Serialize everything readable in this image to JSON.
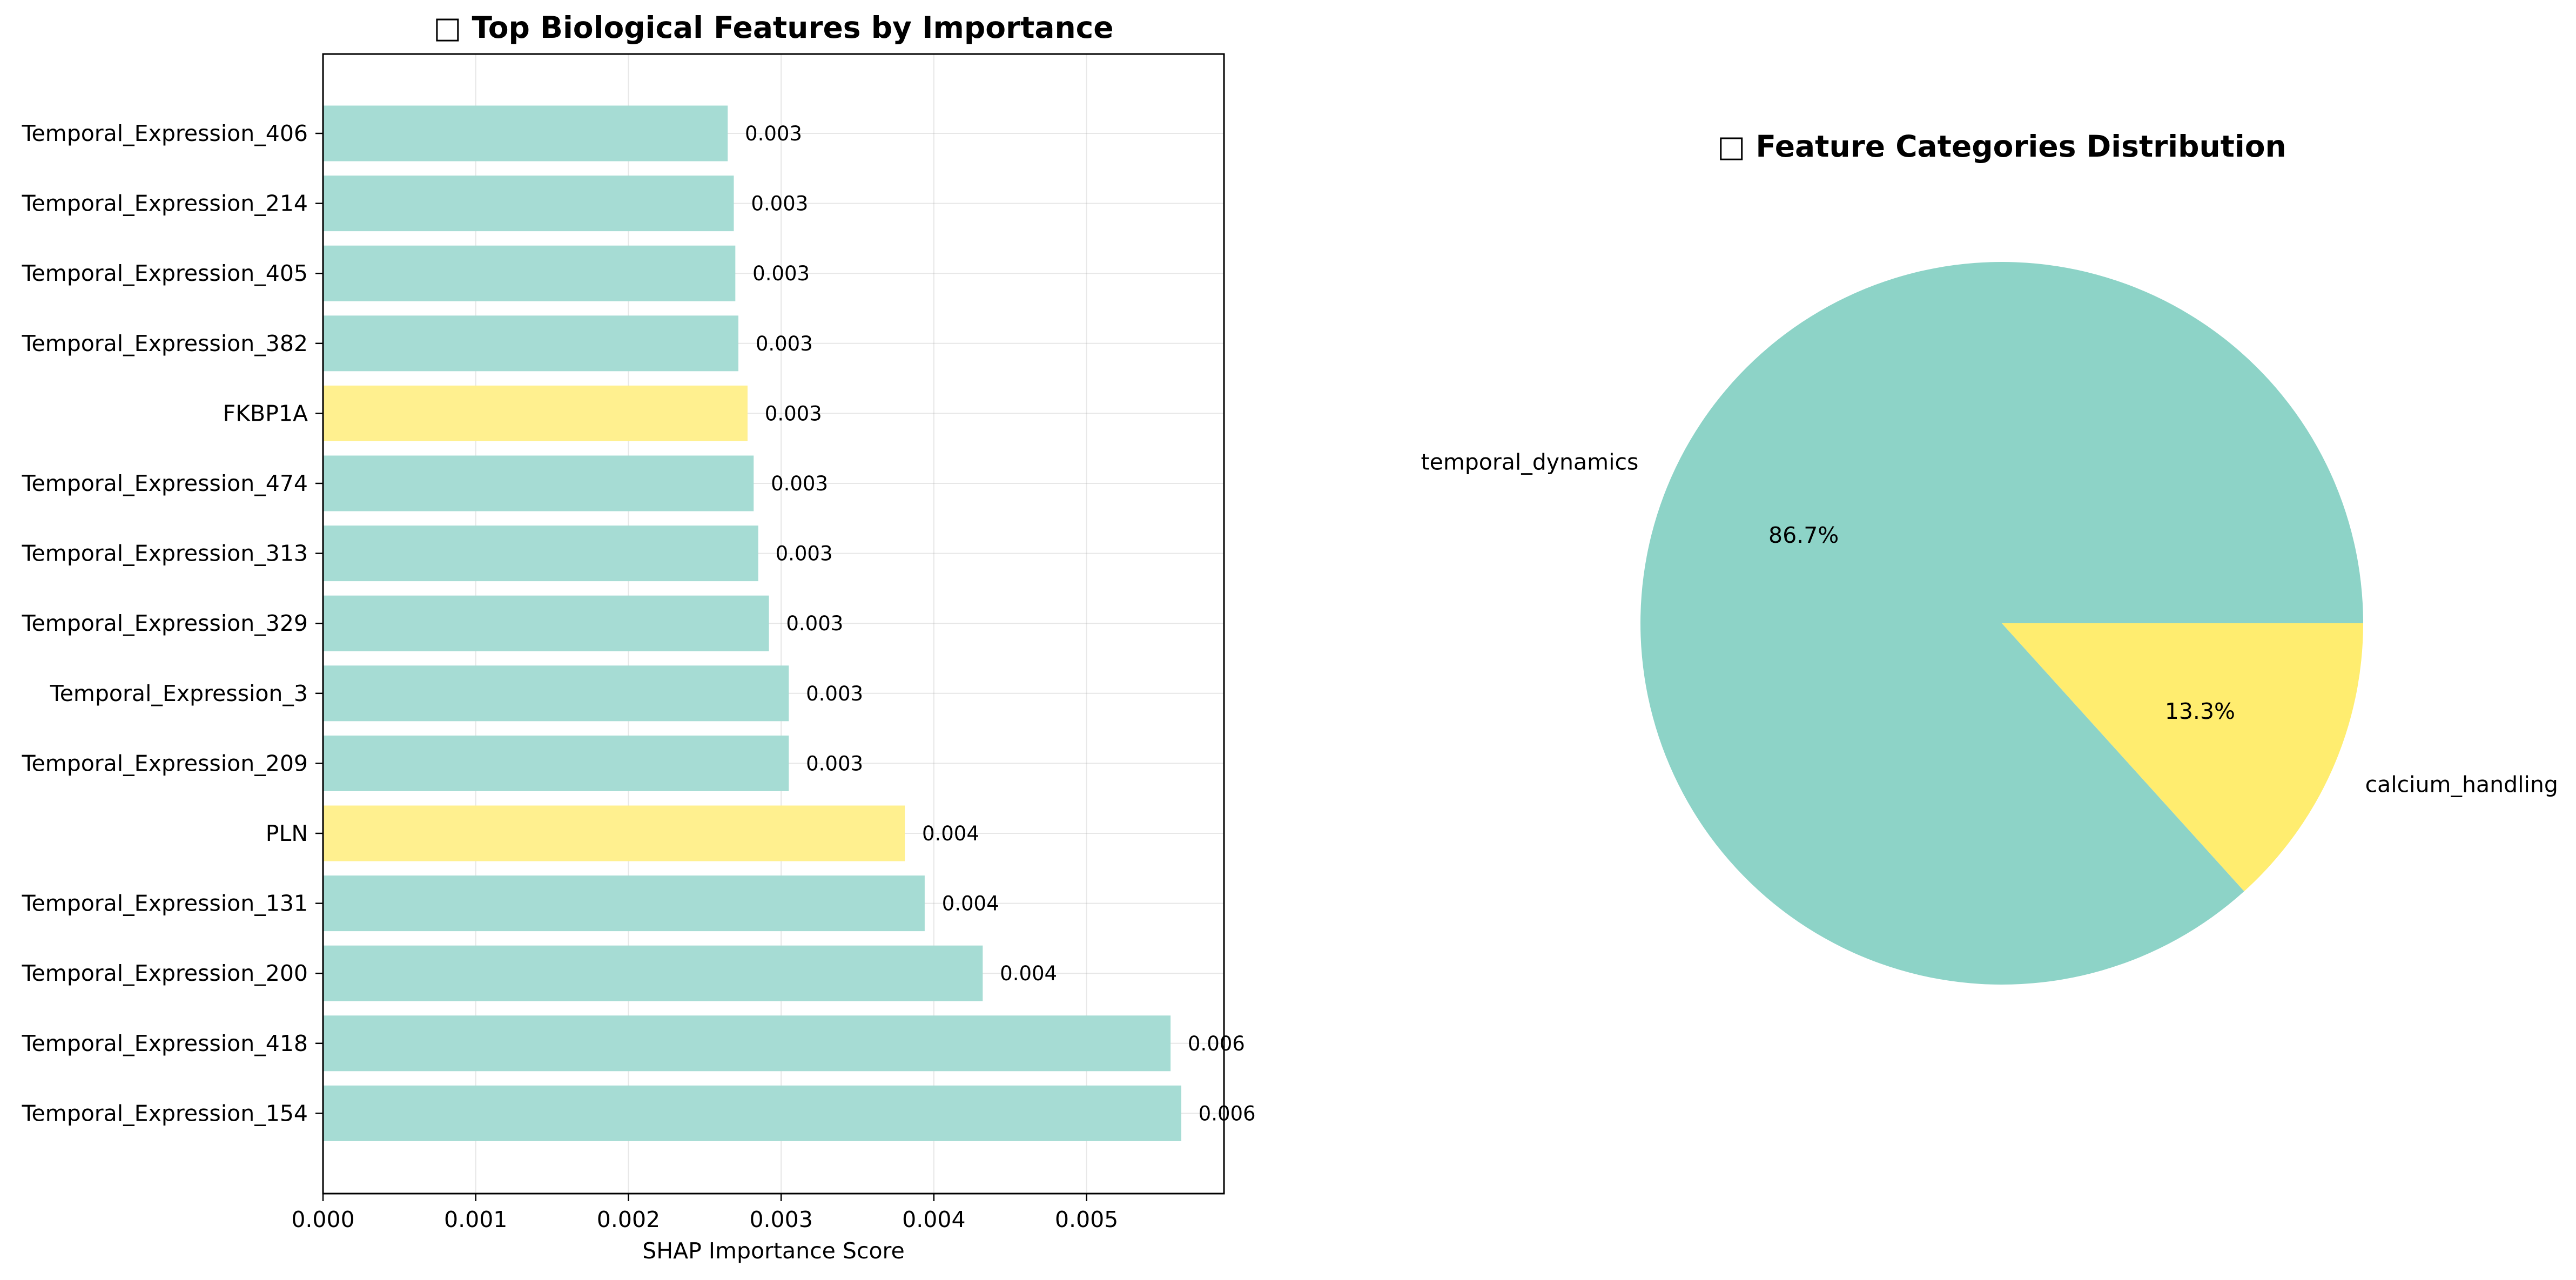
{
  "figure": {
    "background": "#ffffff"
  },
  "chart_data": [
    {
      "type": "bar",
      "orientation": "horizontal",
      "title": "□ Top Biological Features by Importance",
      "xlabel": "SHAP Importance Score",
      "ylabel": "",
      "xlim": [
        0,
        0.0059
      ],
      "xticks": [
        "0.000",
        "0.001",
        "0.002",
        "0.003",
        "0.004",
        "0.005"
      ],
      "grid": true,
      "legend": "none",
      "categories": [
        "Temporal_Expression_406",
        "Temporal_Expression_214",
        "Temporal_Expression_405",
        "Temporal_Expression_382",
        "FKBP1A",
        "Temporal_Expression_474",
        "Temporal_Expression_313",
        "Temporal_Expression_329",
        "Temporal_Expression_3",
        "Temporal_Expression_209",
        "PLN",
        "Temporal_Expression_131",
        "Temporal_Expression_200",
        "Temporal_Expression_418",
        "Temporal_Expression_154"
      ],
      "values": [
        0.00265,
        0.00269,
        0.0027,
        0.00272,
        0.00278,
        0.00282,
        0.00285,
        0.00292,
        0.00305,
        0.00305,
        0.00381,
        0.00394,
        0.00432,
        0.00555,
        0.00562
      ],
      "value_labels": [
        "0.003",
        "0.003",
        "0.003",
        "0.003",
        "0.003",
        "0.003",
        "0.003",
        "0.003",
        "0.003",
        "0.003",
        "0.004",
        "0.004",
        "0.004",
        "0.006",
        "0.006"
      ],
      "bar_category": [
        "temporal_dynamics",
        "temporal_dynamics",
        "temporal_dynamics",
        "temporal_dynamics",
        "calcium_handling",
        "temporal_dynamics",
        "temporal_dynamics",
        "temporal_dynamics",
        "temporal_dynamics",
        "temporal_dynamics",
        "calcium_handling",
        "temporal_dynamics",
        "temporal_dynamics",
        "temporal_dynamics",
        "temporal_dynamics"
      ],
      "colors": {
        "temporal_dynamics": "#a6dcd4",
        "calcium_handling": "#fff08f"
      }
    },
    {
      "type": "pie",
      "title": "□ Feature Categories Distribution",
      "labels": [
        "temporal_dynamics",
        "calcium_handling"
      ],
      "values": [
        86.7,
        13.3
      ],
      "pct_labels": [
        "86.7%",
        "13.3%"
      ],
      "colors": [
        "#8dd3c7",
        "#ffed6f"
      ],
      "start_angle_deg": 0,
      "direction": "counterclockwise"
    }
  ]
}
